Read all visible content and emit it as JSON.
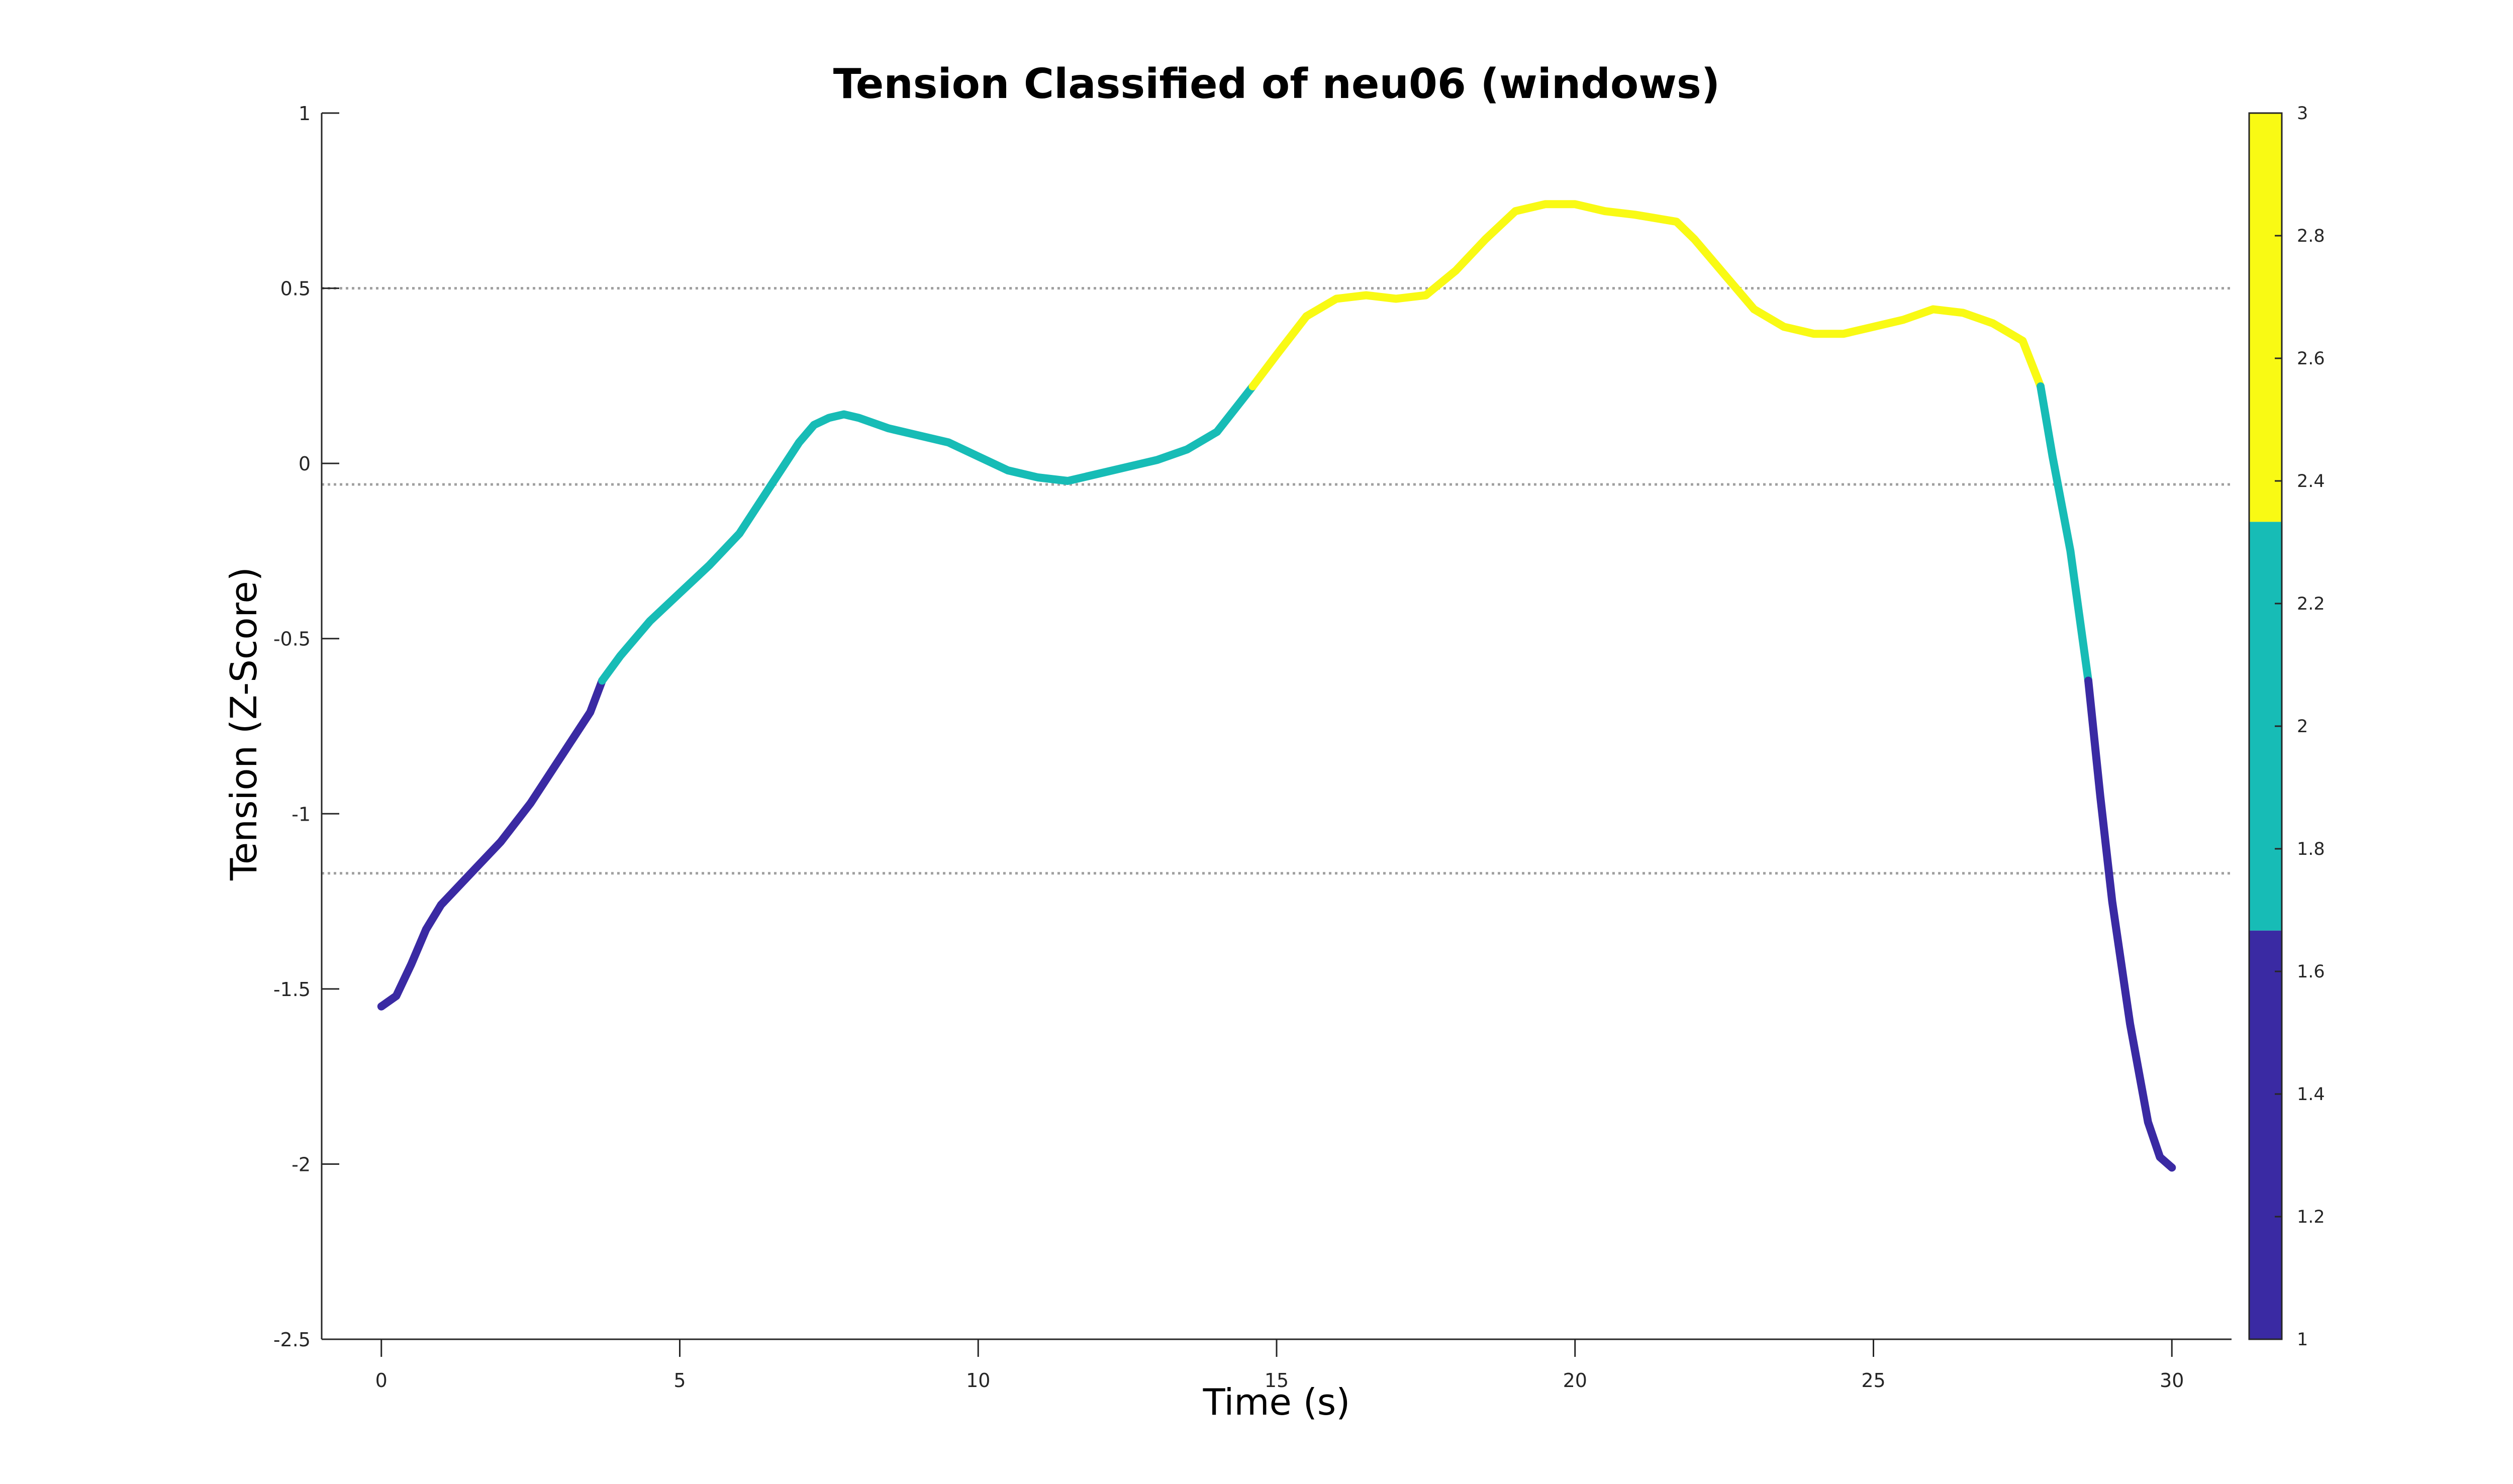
{
  "chart_data": {
    "type": "line",
    "title": "Tension Classified of neu06 (windows)",
    "xlabel": "Time (s)",
    "ylabel": "Tension (Z-Score)",
    "xlim": [
      -1,
      31
    ],
    "ylim": [
      -2.5,
      1
    ],
    "xticks": [
      0,
      5,
      10,
      15,
      20,
      25,
      30
    ],
    "yticks": [
      -2.5,
      -2,
      -1.5,
      -1,
      -0.5,
      0,
      0.5,
      1
    ],
    "xtick_labels": [
      "0",
      "5",
      "10",
      "15",
      "20",
      "25",
      "30"
    ],
    "ytick_labels": [
      "-2.5",
      "-2",
      "-1.5",
      "-1",
      "-0.5",
      "0",
      "0.5",
      "1"
    ],
    "grid": false,
    "thresholds": [
      0.5,
      -0.06,
      -1.17
    ],
    "series": [
      {
        "x": [
          0,
          0.25,
          0.5,
          0.75,
          1,
          1.5,
          2,
          2.5,
          3,
          3.5,
          3.7,
          4,
          4.5,
          5,
          5.5,
          6,
          6.5,
          7,
          7.25,
          7.5,
          7.75,
          8,
          8.5,
          9,
          9.5,
          10,
          10.5,
          11,
          11.5,
          12,
          12.5,
          13,
          13.5,
          14,
          14.6,
          15,
          15.5,
          16,
          16.5,
          17,
          17.5,
          18,
          18.5,
          19,
          19.5,
          20,
          20.5,
          21,
          21.7,
          22,
          22.5,
          23,
          23.5,
          24,
          24.5,
          25,
          25.5,
          26,
          26.5,
          27,
          27.5,
          27.8,
          28,
          28.3,
          28.6,
          28.8,
          29,
          29.3,
          29.6,
          29.8,
          30
        ],
        "y": [
          -1.55,
          -1.52,
          -1.43,
          -1.33,
          -1.26,
          -1.17,
          -1.08,
          -0.97,
          -0.84,
          -0.71,
          -0.62,
          -0.55,
          -0.45,
          -0.37,
          -0.29,
          -0.2,
          -0.07,
          0.06,
          0.11,
          0.13,
          0.14,
          0.13,
          0.1,
          0.08,
          0.06,
          0.02,
          -0.02,
          -0.04,
          -0.05,
          -0.03,
          -0.01,
          0.01,
          0.04,
          0.09,
          0.22,
          0.31,
          0.42,
          0.47,
          0.48,
          0.47,
          0.48,
          0.55,
          0.64,
          0.72,
          0.74,
          0.74,
          0.72,
          0.71,
          0.69,
          0.64,
          0.54,
          0.44,
          0.39,
          0.37,
          0.37,
          0.39,
          0.41,
          0.44,
          0.43,
          0.4,
          0.35,
          0.22,
          0.02,
          -0.25,
          -0.62,
          -0.95,
          -1.25,
          -1.6,
          -1.88,
          -1.98,
          -2.01
        ],
        "class": [
          1,
          1,
          1,
          1,
          1,
          1,
          1,
          1,
          1,
          1,
          2,
          2,
          2,
          2,
          2,
          2,
          2,
          2,
          2,
          2,
          2,
          2,
          2,
          2,
          2,
          2,
          2,
          2,
          2,
          2,
          2,
          2,
          2,
          2,
          3,
          3,
          3,
          3,
          3,
          3,
          3,
          3,
          3,
          3,
          3,
          3,
          3,
          3,
          3,
          3,
          3,
          3,
          3,
          3,
          3,
          3,
          3,
          3,
          3,
          3,
          3,
          2,
          2,
          2,
          1,
          1,
          1,
          1,
          1,
          1,
          1
        ]
      }
    ],
    "colorbar": {
      "range": [
        1,
        3
      ],
      "ticks": [
        1,
        1.2,
        1.4,
        1.6,
        1.8,
        2,
        2.2,
        2.4,
        2.6,
        2.8,
        3
      ],
      "tick_labels": [
        "1",
        "1.2",
        "1.4",
        "1.6",
        "1.8",
        "2",
        "2.2",
        "2.4",
        "2.6",
        "2.8",
        "3"
      ],
      "class_colors": [
        "#3a2aa3",
        "#17bcb6",
        "#f9fa14"
      ]
    },
    "threshold_color": "#a0a0a0"
  }
}
